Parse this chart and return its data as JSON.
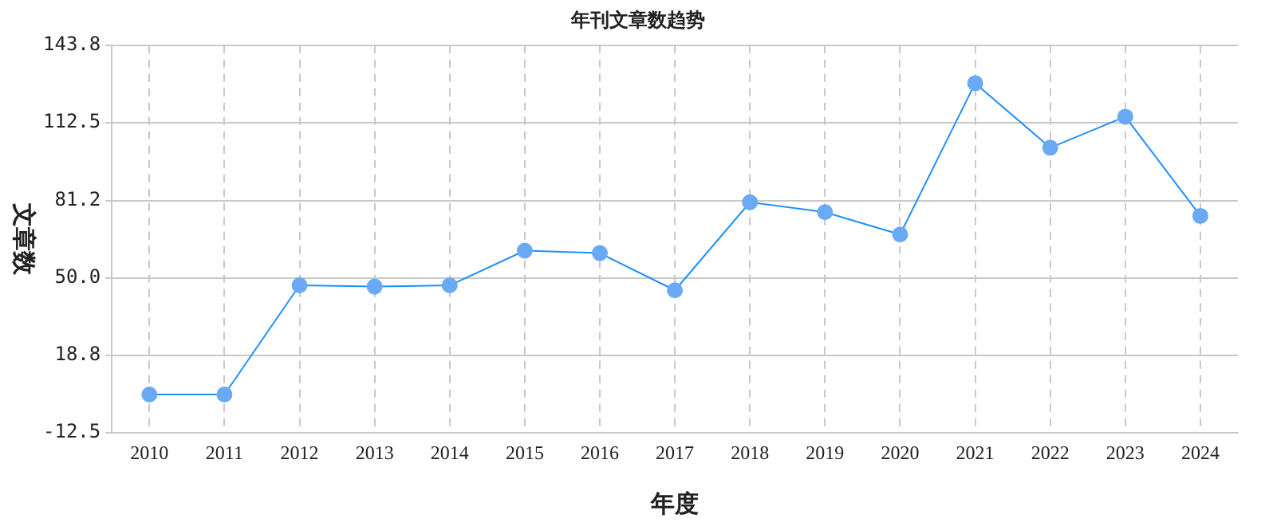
{
  "chart_data": {
    "type": "line",
    "title": "年刊文章数趋势",
    "xlabel": "年度",
    "ylabel": "文章数",
    "categories": [
      "2010",
      "2011",
      "2012",
      "2013",
      "2014",
      "2015",
      "2016",
      "2017",
      "2018",
      "2019",
      "2020",
      "2021",
      "2022",
      "2023",
      "2024"
    ],
    "series": [
      {
        "color": "#1e90ff",
        "values": [
          3,
          3,
          47,
          46.5,
          47,
          61,
          60,
          45,
          80.5,
          76.5,
          67.5,
          128.5,
          102.5,
          115,
          75
        ]
      }
    ],
    "ylim": [
      -12.5,
      143.8
    ],
    "yticks": [
      -12.5,
      18.8,
      {
        "value": 50,
        "label": "50.0"
      },
      81.2,
      112.5,
      143.8
    ],
    "grid": true,
    "marker": "circle",
    "line_style": "solid"
  }
}
